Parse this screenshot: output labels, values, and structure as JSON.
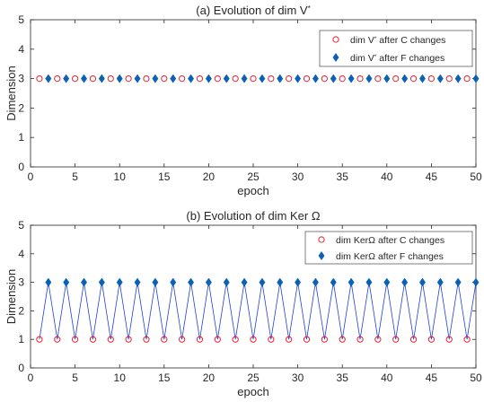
{
  "chart_data": [
    {
      "type": "scatter",
      "title_parts": [
        "(a) Evolution of dim V",
        "*"
      ],
      "xlabel": "epoch",
      "ylabel": "Dimension",
      "xlim": [
        0,
        50
      ],
      "ylim": [
        0,
        5
      ],
      "xticks": [
        0,
        5,
        10,
        15,
        20,
        25,
        30,
        35,
        40,
        45,
        50
      ],
      "yticks": [
        0,
        1,
        2,
        3,
        4,
        5
      ],
      "grid": false,
      "legend_placement": "top-right",
      "connect_lines": false,
      "series": [
        {
          "name_parts": [
            "dim V",
            "*",
            " after C changes"
          ],
          "marker": "open-circle",
          "color": "#e8202a",
          "x": [
            1,
            3,
            5,
            7,
            9,
            11,
            13,
            15,
            17,
            19,
            21,
            23,
            25,
            27,
            29,
            31,
            33,
            35,
            37,
            39,
            41,
            43,
            45,
            47,
            49
          ],
          "y": [
            3,
            3,
            3,
            3,
            3,
            3,
            3,
            3,
            3,
            3,
            3,
            3,
            3,
            3,
            3,
            3,
            3,
            3,
            3,
            3,
            3,
            3,
            3,
            3,
            3
          ]
        },
        {
          "name_parts": [
            "dim V",
            "*",
            " after F changes"
          ],
          "marker": "filled-diamond",
          "color": "#0b62b5",
          "x": [
            2,
            4,
            6,
            8,
            10,
            12,
            14,
            16,
            18,
            20,
            22,
            24,
            26,
            28,
            30,
            32,
            34,
            36,
            38,
            40,
            42,
            44,
            46,
            48,
            50
          ],
          "y": [
            3,
            3,
            3,
            3,
            3,
            3,
            3,
            3,
            3,
            3,
            3,
            3,
            3,
            3,
            3,
            3,
            3,
            3,
            3,
            3,
            3,
            3,
            3,
            3,
            3
          ]
        }
      ]
    },
    {
      "type": "line",
      "title_parts": [
        "(b) Evolution of dim Ker Ω"
      ],
      "xlabel": "epoch",
      "ylabel": "Dimension",
      "xlim": [
        0,
        50
      ],
      "ylim": [
        0,
        5
      ],
      "xticks": [
        0,
        5,
        10,
        15,
        20,
        25,
        30,
        35,
        40,
        45,
        50
      ],
      "yticks": [
        0,
        1,
        2,
        3,
        4,
        5
      ],
      "grid": false,
      "legend_placement": "top-right",
      "connect_lines": true,
      "line_color": "#1f3fdc",
      "series": [
        {
          "name_parts": [
            "dim KerΩ after C changes"
          ],
          "marker": "open-circle",
          "color": "#e8202a",
          "x": [
            1,
            3,
            5,
            7,
            9,
            11,
            13,
            15,
            17,
            19,
            21,
            23,
            25,
            27,
            29,
            31,
            33,
            35,
            37,
            39,
            41,
            43,
            45,
            47,
            49
          ],
          "y": [
            1,
            1,
            1,
            1,
            1,
            1,
            1,
            1,
            1,
            1,
            1,
            1,
            1,
            1,
            1,
            1,
            1,
            1,
            1,
            1,
            1,
            1,
            1,
            1,
            1
          ]
        },
        {
          "name_parts": [
            "dim KerΩ after F changes"
          ],
          "marker": "filled-diamond",
          "color": "#0b62b5",
          "x": [
            2,
            4,
            6,
            8,
            10,
            12,
            14,
            16,
            18,
            20,
            22,
            24,
            26,
            28,
            30,
            32,
            34,
            36,
            38,
            40,
            42,
            44,
            46,
            48,
            50
          ],
          "y": [
            3,
            3,
            3,
            3,
            3,
            3,
            3,
            3,
            3,
            3,
            3,
            3,
            3,
            3,
            3,
            3,
            3,
            3,
            3,
            3,
            3,
            3,
            3,
            3,
            3
          ]
        }
      ]
    }
  ]
}
